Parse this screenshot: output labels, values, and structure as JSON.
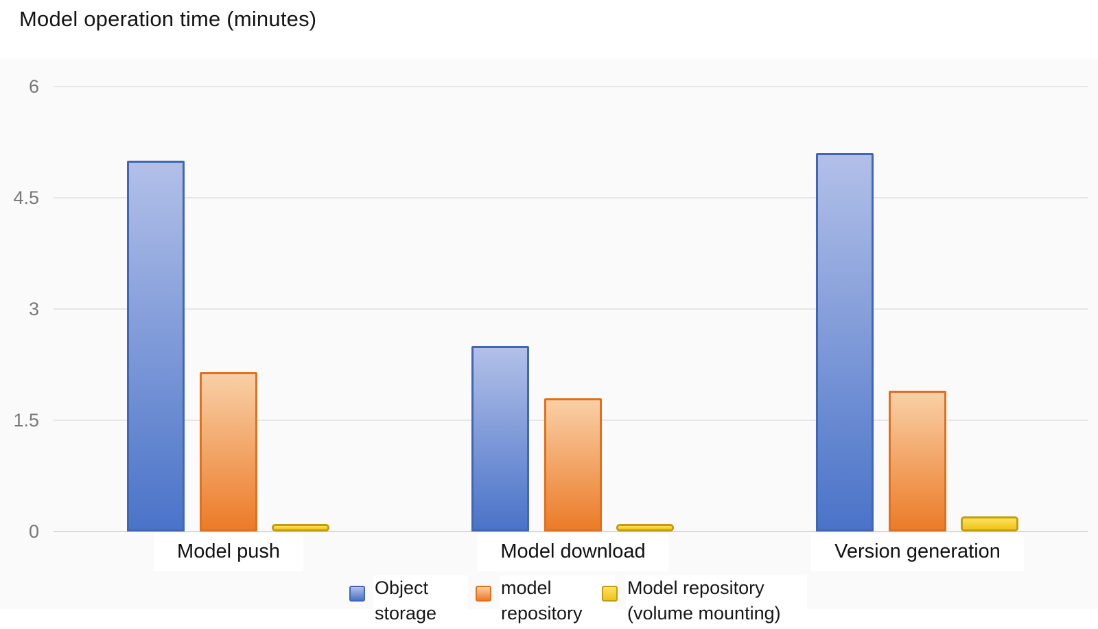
{
  "chart_data": {
    "type": "bar",
    "title": "Model operation time (minutes)",
    "categories": [
      "Model push",
      "Model download",
      "Version generation"
    ],
    "series": [
      {
        "name": "Object storage",
        "values": [
          5.0,
          2.5,
          5.1
        ],
        "color_top": "#b2c0e8",
        "color_bottom": "#4a73c8",
        "border_color": "#4166b6"
      },
      {
        "name": "model repository",
        "values": [
          2.15,
          1.8,
          1.9
        ],
        "color_top": "#f9cfa6",
        "color_bottom": "#ec7b28",
        "border_color": "#e0711c"
      },
      {
        "name": "Model repository (volume mounting)",
        "values": [
          0.1,
          0.1,
          0.2
        ],
        "color_top": "#ffe15c",
        "color_bottom": "#eec41a",
        "border_color": "#c39c12"
      }
    ],
    "y_ticks": [
      "6",
      "4.5",
      "3",
      "1.5",
      "0"
    ],
    "y_tick_values": [
      6,
      4.5,
      3,
      1.5,
      0
    ],
    "ylim": [
      0,
      6.5
    ],
    "xlabel": "",
    "ylabel": "",
    "grid": true,
    "legend_position": "bottom"
  }
}
